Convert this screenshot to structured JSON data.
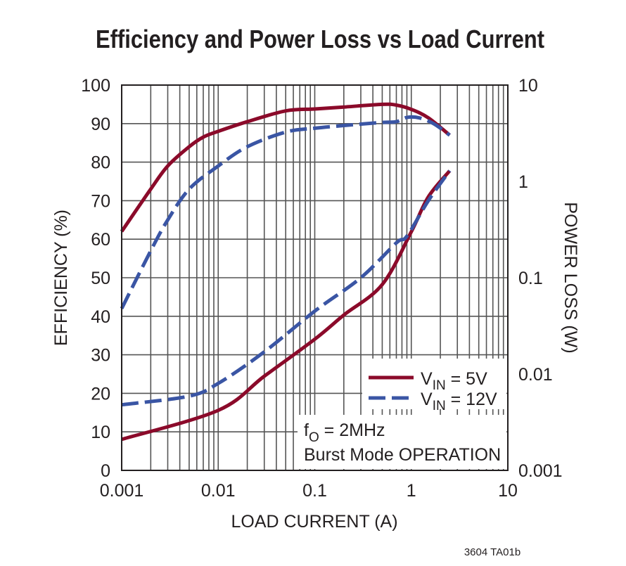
{
  "chart_data": {
    "type": "line",
    "title": "Efficiency and Power Loss vs Load Current",
    "xlabel": "LOAD CURRENT (A)",
    "ylabel": "EFFICIENCY (%)",
    "y2label": "POWER LOSS (W)",
    "xscale": "log",
    "xlim": [
      0.001,
      10
    ],
    "ylim": [
      0,
      100
    ],
    "y2scale": "log",
    "y2lim": [
      0.001,
      10
    ],
    "grid": true,
    "legend_position": "lower-right",
    "x_ticks": [
      "0.001",
      "0.01",
      "0.1",
      "1",
      "10"
    ],
    "y_ticks": [
      "0",
      "10",
      "20",
      "30",
      "40",
      "50",
      "60",
      "70",
      "80",
      "90",
      "100"
    ],
    "y2_ticks": [
      "0.001",
      "0.01",
      "0.1",
      "1",
      "10"
    ],
    "annotation": {
      "f_label": "f",
      "f_sub": "O",
      "f_value": " = 2MHz",
      "mode": "Burst Mode OPERATION"
    },
    "figure_id": "3604 TA01b",
    "series": [
      {
        "name": "VIN = 5V",
        "legend_v": "V",
        "legend_sub": "IN",
        "legend_rest": " = 5V",
        "color": "#8b0a2a",
        "style": "solid",
        "axis": "left",
        "x": [
          0.001,
          0.002,
          0.003,
          0.005,
          0.007,
          0.01,
          0.02,
          0.05,
          0.1,
          0.2,
          0.5,
          0.7,
          1,
          1.5,
          2.5
        ],
        "y": [
          62,
          73,
          79,
          84,
          86.5,
          88,
          90.5,
          93.3,
          93.8,
          94.3,
          95,
          94.8,
          93.7,
          91.5,
          87
        ]
      },
      {
        "name": "VIN = 12V",
        "legend_v": "V",
        "legend_sub": "IN",
        "legend_rest": " = 12V",
        "color": "#3a55a4",
        "style": "dashed",
        "axis": "left",
        "x": [
          0.001,
          0.002,
          0.003,
          0.005,
          0.01,
          0.02,
          0.05,
          0.1,
          0.2,
          0.5,
          0.7,
          0.9,
          1.2,
          1.7,
          2.5
        ],
        "y": [
          42,
          57,
          65,
          73,
          79,
          84,
          87.8,
          88.8,
          89.5,
          90.3,
          90.5,
          91.6,
          91.5,
          90,
          87
        ]
      },
      {
        "name": "VIN = 5V",
        "color": "#8b0a2a",
        "style": "solid",
        "axis": "right",
        "x": [
          0.001,
          0.01,
          0.03,
          0.1,
          0.2,
          0.5,
          1,
          1.5,
          2.5
        ],
        "y": [
          0.0021,
          0.0042,
          0.0095,
          0.023,
          0.041,
          0.085,
          0.3,
          0.69,
          1.29
        ]
      },
      {
        "name": "VIN = 12V",
        "color": "#3a55a4",
        "style": "dashed",
        "axis": "right",
        "x": [
          0.001,
          0.005,
          0.01,
          0.03,
          0.1,
          0.3,
          0.7,
          0.9,
          1.5,
          2.5
        ],
        "y": [
          0.0048,
          0.0059,
          0.008,
          0.017,
          0.045,
          0.1,
          0.23,
          0.27,
          0.63,
          1.29
        ]
      }
    ]
  }
}
